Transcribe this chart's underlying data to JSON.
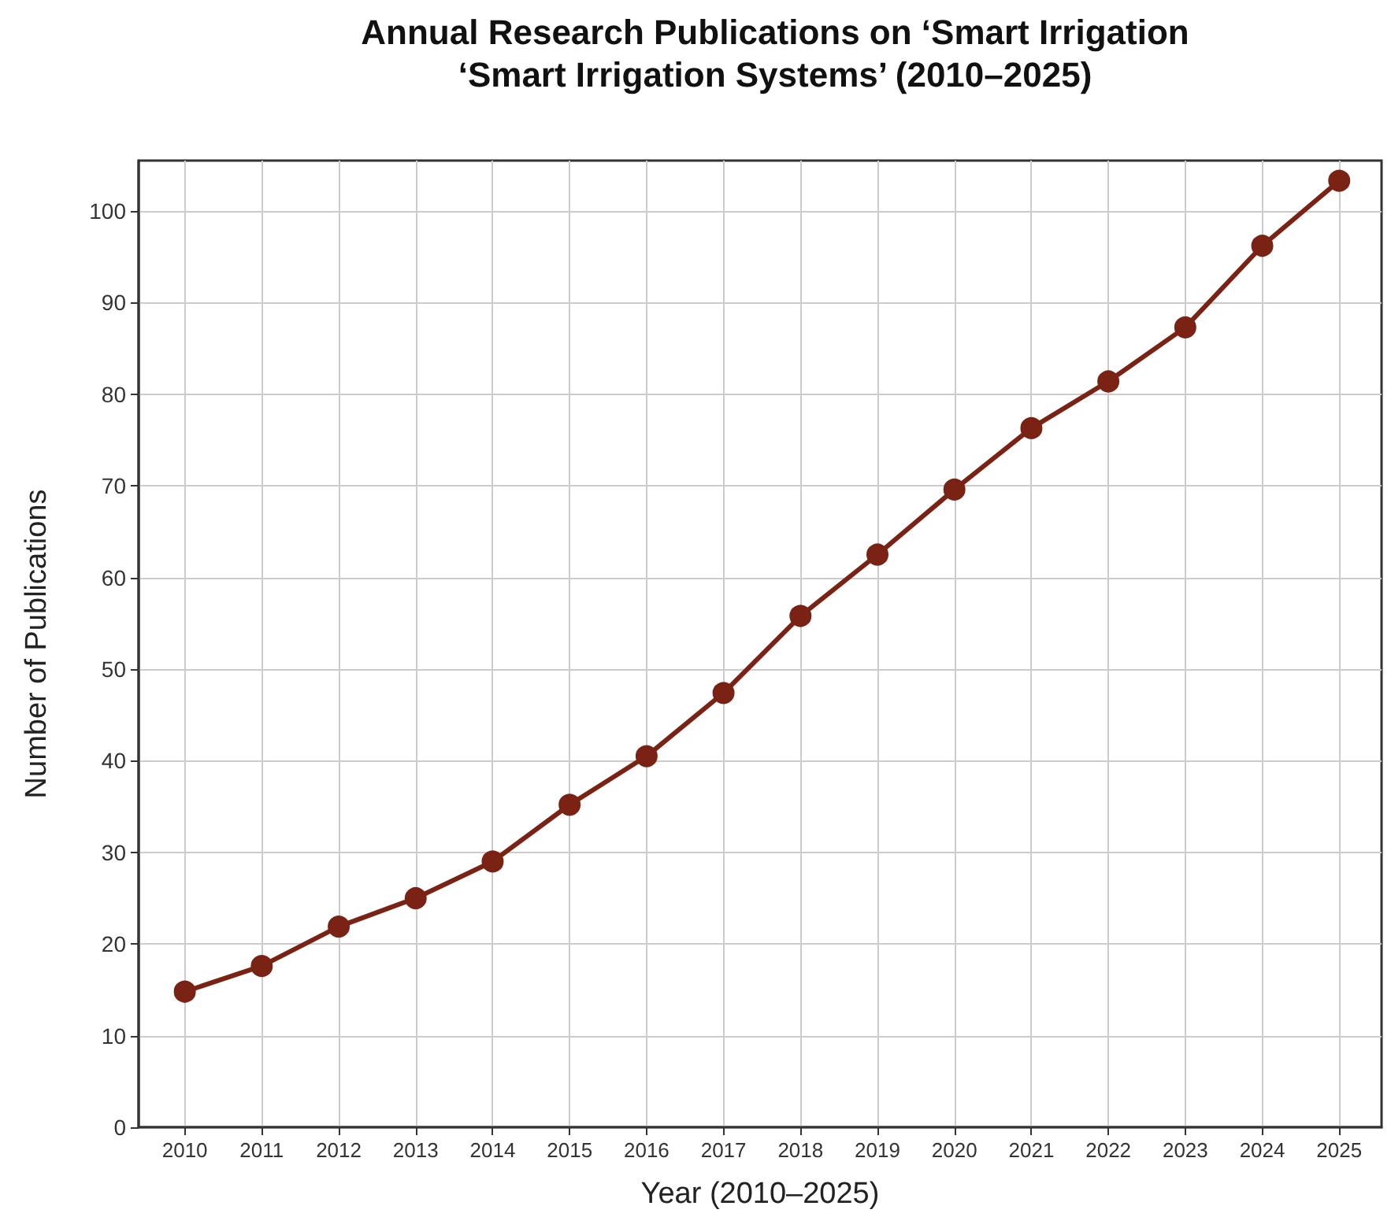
{
  "chart_data": {
    "type": "line",
    "title": "Annual Research Publications on ‘Smart Irrigation\n‘Smart Irrigation Systems’ (2010–2025)",
    "xlabel": "Year (2010–2025)",
    "ylabel": "Number of Publications",
    "x": [
      2010,
      2011,
      2012,
      2013,
      2014,
      2015,
      2016,
      2017,
      2018,
      2019,
      2020,
      2021,
      2022,
      2023,
      2024,
      2025
    ],
    "series": [
      {
        "color": "#7a2214",
        "values": [
          14.8,
          17.6,
          21.9,
          25.0,
          29.0,
          35.2,
          40.5,
          47.4,
          55.8,
          62.5,
          69.6,
          76.3,
          81.4,
          87.3,
          96.2,
          103.3
        ]
      }
    ],
    "xlim": [
      2009.4,
      2025.55
    ],
    "xticks": [
      2010,
      2011,
      2012,
      2013,
      2014,
      2015,
      2016,
      2017,
      2018,
      2019,
      2020,
      2021,
      2022,
      2023,
      2024,
      2025
    ],
    "ylim": [
      0,
      105.5
    ],
    "yticks": [
      0,
      10,
      20,
      30,
      40,
      50,
      60,
      70,
      80,
      90,
      100
    ],
    "grid": true,
    "marker": "circle",
    "line_style": "solid"
  }
}
